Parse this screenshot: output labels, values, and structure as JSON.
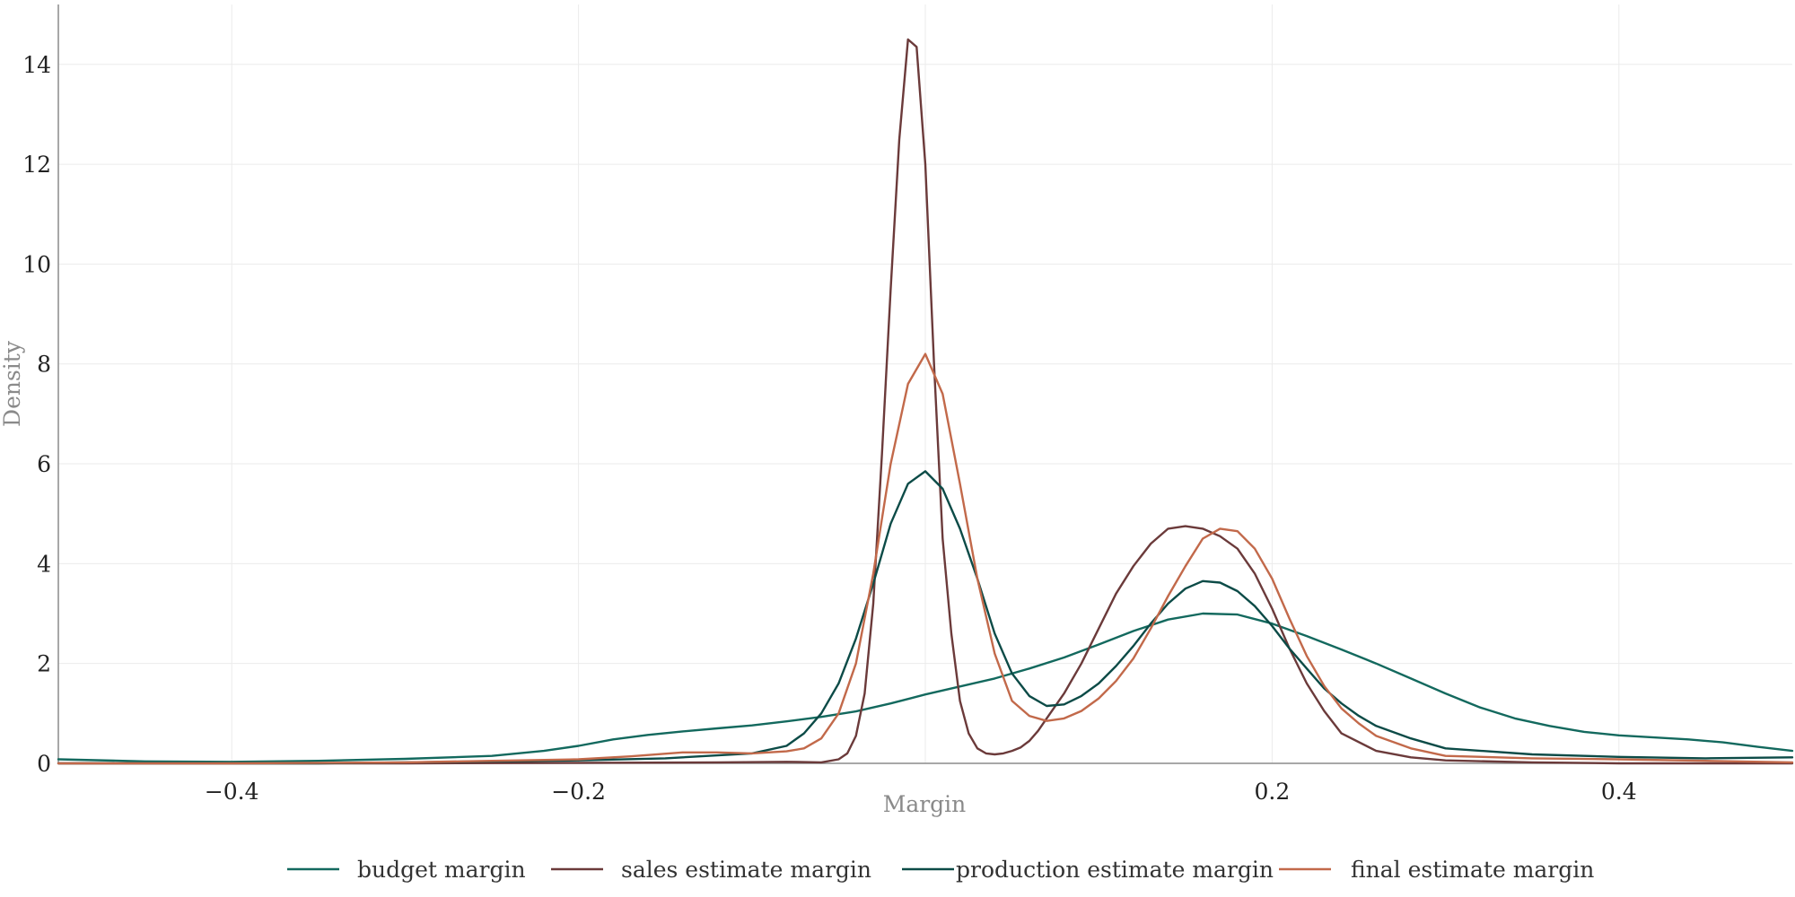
{
  "chart_data": {
    "type": "line",
    "title": "",
    "xlabel": "Margin",
    "ylabel": "Density",
    "xlim": [
      -0.5,
      0.5
    ],
    "ylim": [
      0,
      15.2
    ],
    "x_ticks": [
      -0.4,
      -0.2,
      0.2,
      0.4
    ],
    "x_tick_labels": [
      "−0.4",
      "−0.2",
      "0.2",
      "0.4"
    ],
    "y_ticks": [
      0,
      2,
      4,
      6,
      8,
      10,
      12,
      14
    ],
    "y_tick_labels": [
      "0",
      "2",
      "4",
      "6",
      "8",
      "10",
      "12",
      "14"
    ],
    "grid": true,
    "legend_position": "bottom",
    "series": [
      {
        "name": "budget margin",
        "color": "#13695e",
        "x": [
          -0.5,
          -0.45,
          -0.4,
          -0.35,
          -0.3,
          -0.25,
          -0.22,
          -0.2,
          -0.18,
          -0.16,
          -0.14,
          -0.12,
          -0.1,
          -0.08,
          -0.06,
          -0.04,
          -0.02,
          0,
          0.02,
          0.04,
          0.06,
          0.08,
          0.1,
          0.12,
          0.14,
          0.16,
          0.18,
          0.2,
          0.22,
          0.24,
          0.26,
          0.28,
          0.3,
          0.32,
          0.34,
          0.36,
          0.38,
          0.4,
          0.42,
          0.44,
          0.46,
          0.48,
          0.5
        ],
        "y": [
          0.08,
          0.04,
          0.03,
          0.05,
          0.09,
          0.15,
          0.25,
          0.35,
          0.48,
          0.57,
          0.64,
          0.7,
          0.76,
          0.84,
          0.93,
          1.04,
          1.2,
          1.38,
          1.54,
          1.7,
          1.9,
          2.12,
          2.38,
          2.65,
          2.88,
          3.0,
          2.98,
          2.8,
          2.55,
          2.28,
          2.0,
          1.7,
          1.4,
          1.12,
          0.9,
          0.75,
          0.63,
          0.56,
          0.52,
          0.48,
          0.42,
          0.33,
          0.25
        ]
      },
      {
        "name": "sales estimate margin",
        "color": "#6b3a3a",
        "x": [
          -0.5,
          -0.4,
          -0.3,
          -0.2,
          -0.12,
          -0.08,
          -0.06,
          -0.05,
          -0.045,
          -0.04,
          -0.035,
          -0.03,
          -0.025,
          -0.02,
          -0.015,
          -0.01,
          -0.005,
          0.0,
          0.005,
          0.01,
          0.015,
          0.02,
          0.025,
          0.03,
          0.035,
          0.04,
          0.045,
          0.05,
          0.055,
          0.06,
          0.065,
          0.07,
          0.08,
          0.09,
          0.1,
          0.11,
          0.12,
          0.13,
          0.14,
          0.15,
          0.16,
          0.17,
          0.18,
          0.19,
          0.2,
          0.21,
          0.22,
          0.23,
          0.24,
          0.26,
          0.28,
          0.3,
          0.35,
          0.4,
          0.5
        ],
        "y": [
          0.0,
          0.0,
          0.0,
          0.01,
          0.02,
          0.03,
          0.02,
          0.08,
          0.2,
          0.55,
          1.4,
          3.2,
          6.2,
          9.5,
          12.5,
          14.5,
          14.35,
          12.0,
          8.0,
          4.5,
          2.6,
          1.25,
          0.6,
          0.3,
          0.2,
          0.18,
          0.2,
          0.25,
          0.32,
          0.45,
          0.65,
          0.9,
          1.4,
          2.0,
          2.7,
          3.4,
          3.95,
          4.4,
          4.7,
          4.75,
          4.7,
          4.55,
          4.3,
          3.8,
          3.1,
          2.3,
          1.6,
          1.05,
          0.6,
          0.25,
          0.12,
          0.06,
          0.02,
          0.0,
          0.0
        ],
        "x_plotted": null
      },
      {
        "name": "production estimate margin",
        "color": "#0c4b47",
        "x": [
          -0.5,
          -0.45,
          -0.4,
          -0.35,
          -0.3,
          -0.25,
          -0.2,
          -0.15,
          -0.1,
          -0.08,
          -0.07,
          -0.06,
          -0.05,
          -0.04,
          -0.03,
          -0.02,
          -0.01,
          0.0,
          0.01,
          0.02,
          0.03,
          0.04,
          0.05,
          0.06,
          0.07,
          0.08,
          0.09,
          0.1,
          0.11,
          0.12,
          0.13,
          0.14,
          0.15,
          0.16,
          0.17,
          0.18,
          0.19,
          0.2,
          0.21,
          0.22,
          0.23,
          0.24,
          0.25,
          0.26,
          0.28,
          0.3,
          0.35,
          0.4,
          0.45,
          0.5
        ],
        "y": [
          0.0,
          0.0,
          0.0,
          0.0,
          0.02,
          0.04,
          0.06,
          0.1,
          0.2,
          0.35,
          0.6,
          1.0,
          1.6,
          2.5,
          3.6,
          4.8,
          5.6,
          5.85,
          5.5,
          4.7,
          3.7,
          2.6,
          1.8,
          1.35,
          1.15,
          1.18,
          1.35,
          1.6,
          1.95,
          2.35,
          2.8,
          3.2,
          3.5,
          3.65,
          3.62,
          3.45,
          3.15,
          2.75,
          2.3,
          1.9,
          1.5,
          1.2,
          0.95,
          0.75,
          0.5,
          0.3,
          0.18,
          0.13,
          0.1,
          0.12
        ]
      },
      {
        "name": "final estimate margin",
        "color": "#c2694a",
        "x": [
          -0.5,
          -0.4,
          -0.3,
          -0.25,
          -0.2,
          -0.17,
          -0.14,
          -0.12,
          -0.1,
          -0.08,
          -0.07,
          -0.06,
          -0.05,
          -0.04,
          -0.03,
          -0.02,
          -0.01,
          0.0,
          0.01,
          0.02,
          0.03,
          0.04,
          0.05,
          0.06,
          0.07,
          0.08,
          0.09,
          0.1,
          0.11,
          0.12,
          0.13,
          0.14,
          0.15,
          0.16,
          0.17,
          0.18,
          0.19,
          0.2,
          0.21,
          0.22,
          0.23,
          0.24,
          0.25,
          0.26,
          0.28,
          0.3,
          0.35,
          0.4,
          0.45,
          0.5
        ],
        "y": [
          0.0,
          0.0,
          0.02,
          0.05,
          0.08,
          0.14,
          0.22,
          0.22,
          0.2,
          0.24,
          0.3,
          0.5,
          1.0,
          2.0,
          3.8,
          6.0,
          7.6,
          8.2,
          7.4,
          5.6,
          3.7,
          2.2,
          1.25,
          0.95,
          0.85,
          0.9,
          1.05,
          1.3,
          1.65,
          2.1,
          2.7,
          3.35,
          3.95,
          4.5,
          4.7,
          4.65,
          4.3,
          3.7,
          2.9,
          2.15,
          1.55,
          1.1,
          0.8,
          0.55,
          0.3,
          0.15,
          0.1,
          0.08,
          0.05,
          0.02
        ]
      }
    ]
  }
}
